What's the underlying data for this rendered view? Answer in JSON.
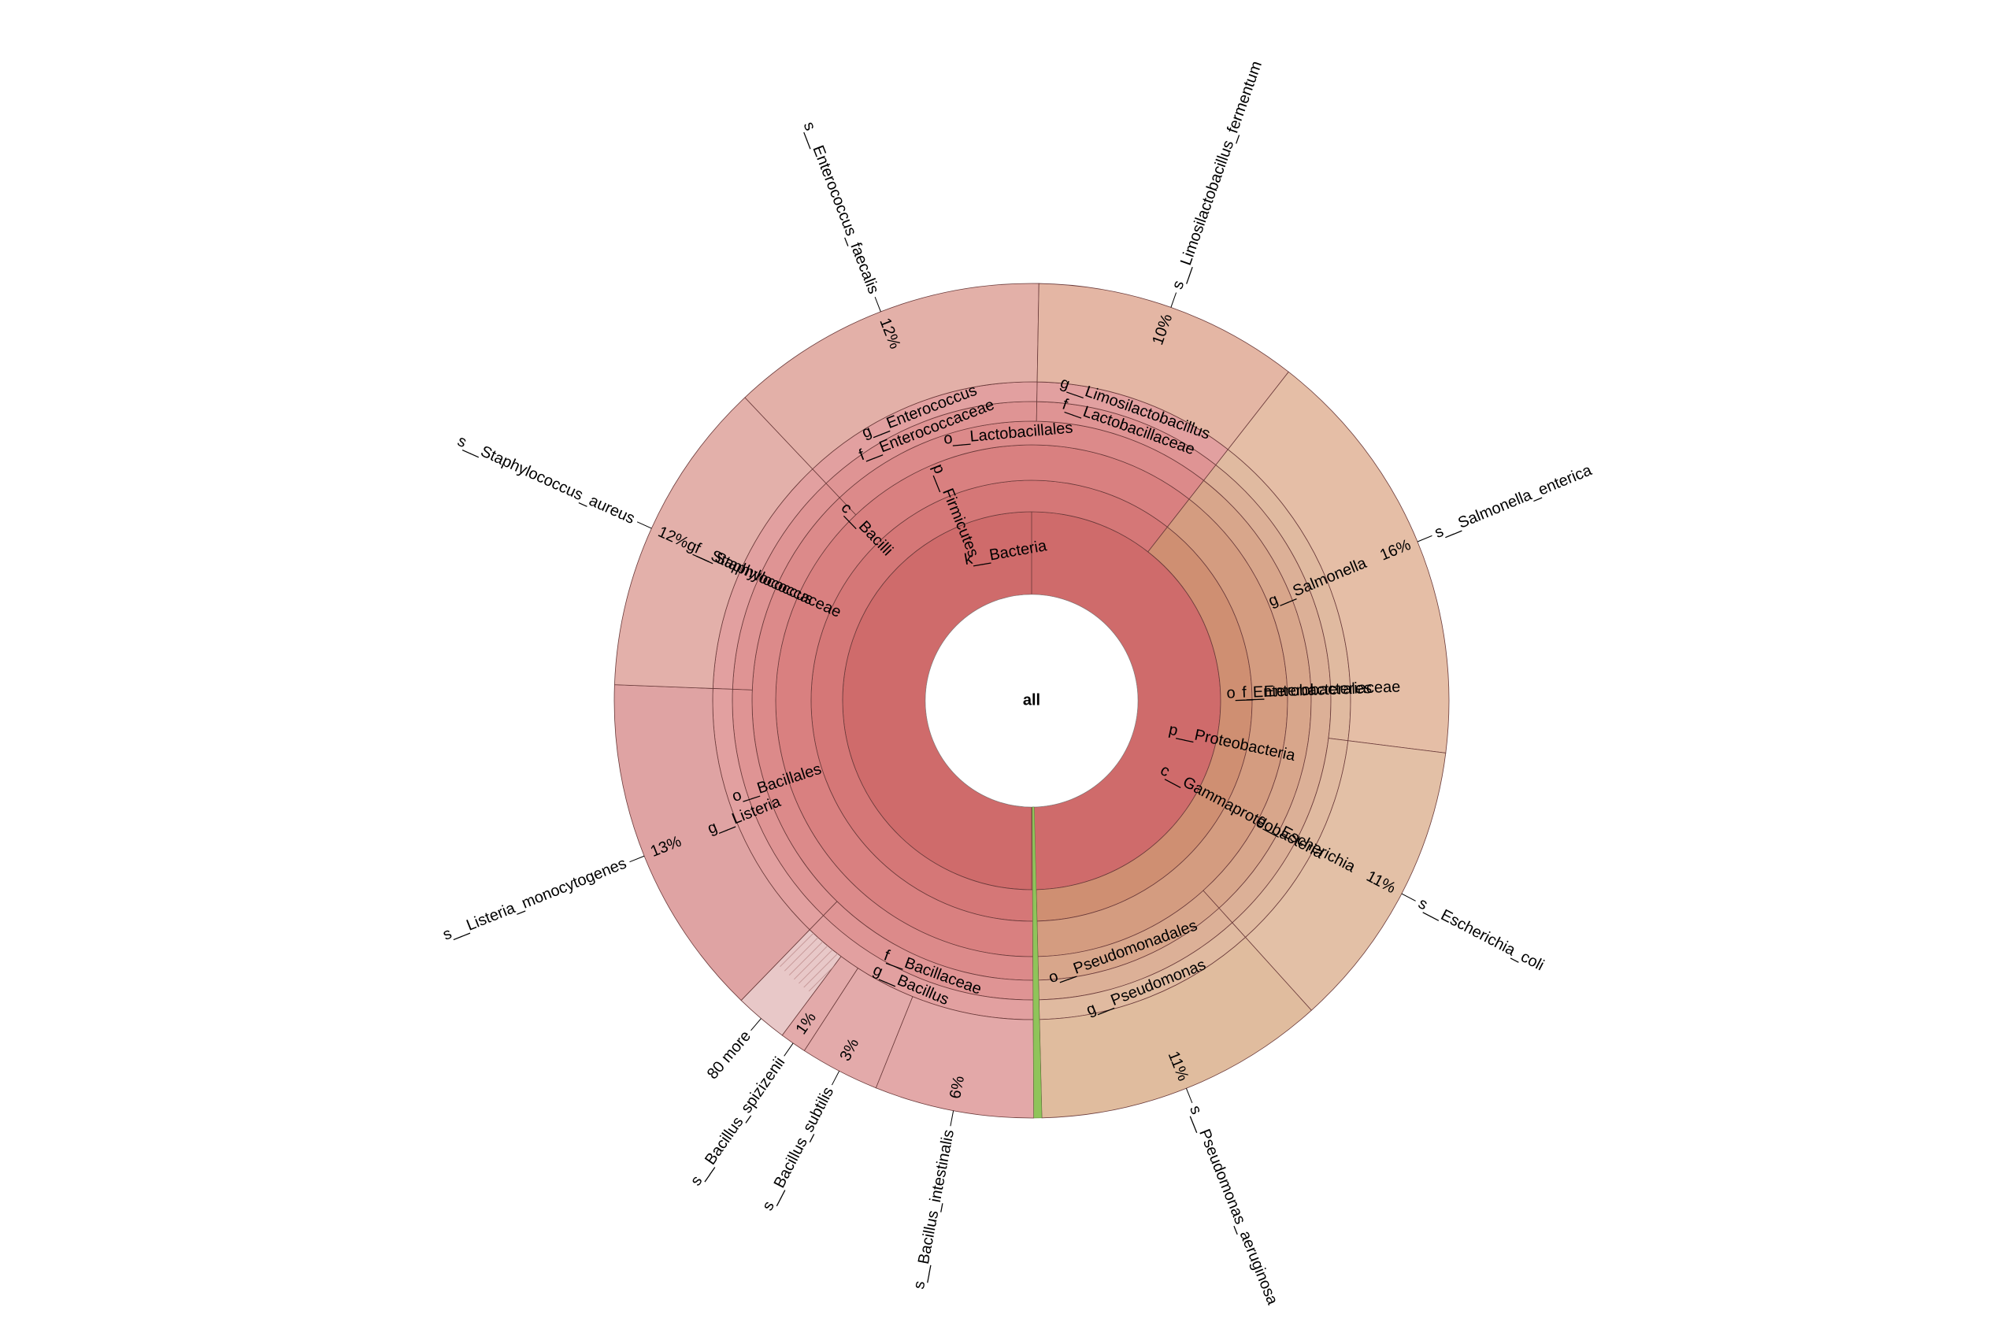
{
  "chart_data": {
    "type": "sunburst",
    "center": "all",
    "root": "k__Bacteria",
    "phyla": [
      {
        "name": "p__Firmicutes",
        "color": "#d57777"
      },
      {
        "name": "p__Proteobacteria",
        "color": "#cf8f72"
      }
    ],
    "classes": [
      "c__Bacilli",
      "c__Gammaproteobacteria"
    ],
    "orders": [
      "o__Lactobacillales",
      "o__Bacillales",
      "o__Enterobacterales",
      "o__Pseudomonadales"
    ],
    "families": [
      "f__Enterococcaceae",
      "f__Lactobacillaceae",
      "f__Staphylococcaceae",
      "f__Bacillaceae",
      "f__Enterobacteriaceae"
    ],
    "genera": [
      "g__Enterococcus",
      "g__Limosilactobacillus",
      "g__Staphylococcus",
      "g__Listeria",
      "g__Bacillus",
      "g__Salmonella",
      "g__Escherichia",
      "g__Pseudomonas"
    ],
    "species": [
      {
        "name": "s__Enterococcus_faecalis",
        "percent": "12%",
        "value": 12
      },
      {
        "name": "s__Limosilactobacillus_fermentum",
        "percent": "10%",
        "value": 10
      },
      {
        "name": "s__Salmonella_enterica",
        "percent": "16%",
        "value": 16
      },
      {
        "name": "s__Escherichia_coli",
        "percent": "11%",
        "value": 11
      },
      {
        "name": "s__Pseudomonas_aeruginosa",
        "percent": "11%",
        "value": 11
      },
      {
        "name": "s__Bacillus_intestinalis",
        "percent": "6%",
        "value": 6
      },
      {
        "name": "s__Bacillus_subtilis",
        "percent": "3%",
        "value": 3
      },
      {
        "name": "s__Bacillus_spizizenii",
        "percent": "1%",
        "value": 1
      },
      {
        "name": "80 more",
        "percent": "",
        "value": 2
      },
      {
        "name": "s__Listeria_monocytogenes",
        "percent": "13%",
        "value": 13
      },
      {
        "name": "s__Staphylococcus_aureus",
        "percent": "12%",
        "value": 12
      }
    ]
  }
}
